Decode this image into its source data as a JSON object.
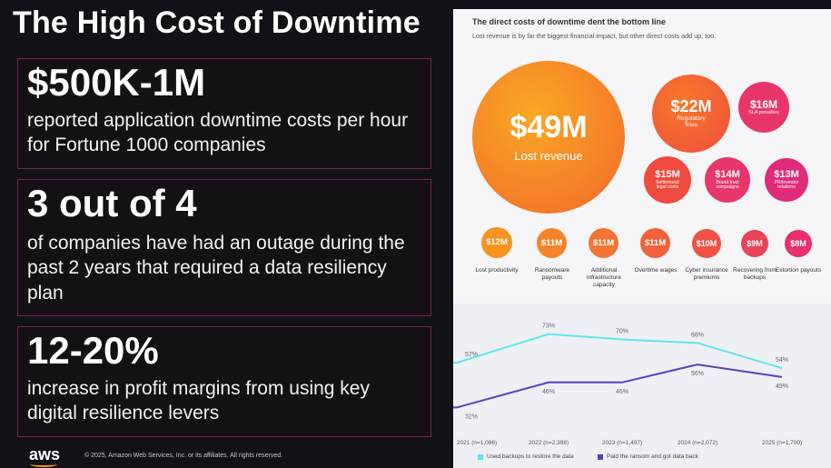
{
  "title": "The High Cost of Downtime",
  "stats": [
    {
      "value": "$500K-1M",
      "description": "reported application downtime costs per hour for Fortune 1000 companies"
    },
    {
      "value": "3 out of 4",
      "description": "of companies have had an outage during the past 2 years that required a data resiliency plan"
    },
    {
      "value": "12-20%",
      "description": "increase in profit margins from using key digital resilience levers"
    }
  ],
  "footer": {
    "logo": "aws",
    "copyright": "© 2025, Amazon Web Services, Inc. or its affiliates. All rights reserved."
  },
  "panel": {
    "title": "The direct costs of downtime dent the bottom line",
    "subtitle": "Lost revenue is by far the biggest financial impact, but other direct costs add up, too.",
    "big": [
      {
        "amount": "$49M",
        "label": "Lost revenue"
      },
      {
        "amount": "$22M",
        "label": "Regulatory fines"
      },
      {
        "amount": "$16M",
        "label": "SLA penalties"
      },
      {
        "amount": "$15M",
        "label": "Settlement/ legal costs"
      },
      {
        "amount": "$14M",
        "label": "Brand trust campaigns"
      },
      {
        "amount": "$13M",
        "label": "PR/investor relations"
      }
    ],
    "small": [
      {
        "amount": "$12M",
        "label": "Lost productivity"
      },
      {
        "amount": "$11M",
        "label": "Ransomware payouts"
      },
      {
        "amount": "$11M",
        "label": "Additional infrastructure capacity"
      },
      {
        "amount": "$11M",
        "label": "Overtime wages"
      },
      {
        "amount": "$10M",
        "label": "Cyber insurance premiums"
      },
      {
        "amount": "$9M",
        "label": "Recovering from backups"
      },
      {
        "amount": "$8M",
        "label": "Extortion payouts"
      }
    ]
  },
  "chart_data": {
    "type": "line",
    "categories": [
      "2021 (n=1,086)",
      "2022 (n=2,398)",
      "2023 (n=1,497)",
      "2024 (n=2,072)",
      "2025 (n=1,700)"
    ],
    "series": [
      {
        "name": "Used backups to restore the data",
        "values": [
          57,
          73,
          70,
          68,
          54
        ],
        "labels": [
          "57%",
          "73%",
          "70%",
          "68%",
          "54%"
        ],
        "color": "#5ee6ec"
      },
      {
        "name": "Paid the ransom and got data back",
        "values": [
          32,
          46,
          46,
          56,
          49
        ],
        "labels": [
          "32%",
          "46%",
          "46%",
          "56%",
          "49%"
        ],
        "color": "#5a3fc0"
      }
    ],
    "ylim": [
      20,
      85
    ]
  },
  "colors": {
    "accent_border": "#7a2150",
    "orange": "#f7931e",
    "pink": "#e8306e"
  }
}
